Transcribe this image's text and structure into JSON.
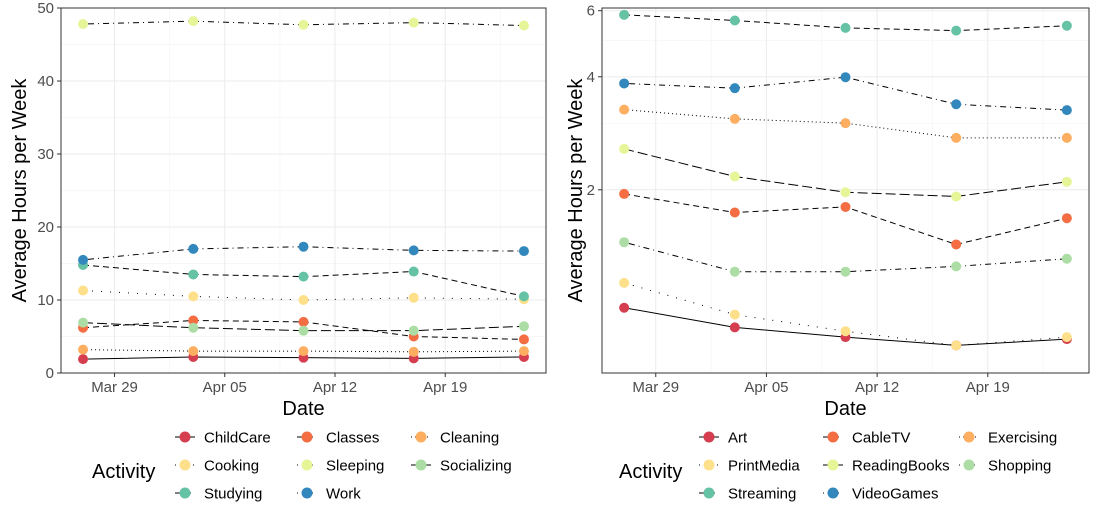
{
  "chart_data": [
    {
      "type": "line",
      "xlabel": "Date",
      "ylabel": "Average Hours per Week",
      "x": [
        "2020-03-27",
        "2020-04-03",
        "2020-04-10",
        "2020-04-17",
        "2020-04-24"
      ],
      "xticks": [
        {
          "date": "2020-03-29",
          "label": "Mar 29"
        },
        {
          "date": "2020-04-05",
          "label": "Apr 05"
        },
        {
          "date": "2020-04-12",
          "label": "Apr 12"
        },
        {
          "date": "2020-04-19",
          "label": "Apr 19"
        }
      ],
      "yticks": [
        0,
        10,
        20,
        30,
        40,
        50
      ],
      "ylim": [
        0,
        50
      ],
      "scale": "linear",
      "grid": true,
      "legend_title": "Activity",
      "legend_position": "bottom",
      "series": [
        {
          "name": "ChildCare",
          "color": "#D53E4F",
          "dash": "solid",
          "values": [
            1.9,
            2.2,
            2.1,
            2.0,
            2.2
          ]
        },
        {
          "name": "Classes",
          "color": "#F46D43",
          "dash": "dashed",
          "values": [
            6.2,
            7.2,
            7.0,
            5.0,
            4.6
          ]
        },
        {
          "name": "Cleaning",
          "color": "#FDAE61",
          "dash": "dotted",
          "values": [
            3.2,
            3.0,
            3.0,
            2.9,
            3.0
          ]
        },
        {
          "name": "Cooking",
          "color": "#FEE08B",
          "dash": "dotted-wide",
          "values": [
            11.3,
            10.5,
            10.0,
            10.3,
            10.1
          ]
        },
        {
          "name": "Sleeping",
          "color": "#E6F598",
          "dash": "dotdash",
          "values": [
            47.8,
            48.2,
            47.7,
            48.0,
            47.6
          ]
        },
        {
          "name": "Socializing",
          "color": "#ABDDA4",
          "dash": "longdash",
          "values": [
            6.9,
            6.2,
            5.8,
            5.8,
            6.4
          ]
        },
        {
          "name": "Studying",
          "color": "#66C2A5",
          "dash": "dashed",
          "values": [
            14.8,
            13.5,
            13.2,
            13.9,
            10.5
          ]
        },
        {
          "name": "Work",
          "color": "#3288BD",
          "dash": "dotdash",
          "values": [
            15.5,
            17.0,
            17.3,
            16.8,
            16.7
          ]
        }
      ]
    },
    {
      "type": "line",
      "xlabel": "Date",
      "ylabel": "Average Hours per Week",
      "x": [
        "2020-03-27",
        "2020-04-03",
        "2020-04-10",
        "2020-04-17",
        "2020-04-24"
      ],
      "xticks": [
        {
          "date": "2020-03-29",
          "label": "Mar 29"
        },
        {
          "date": "2020-04-05",
          "label": "Apr 05"
        },
        {
          "date": "2020-04-12",
          "label": "Apr 12"
        },
        {
          "date": "2020-04-19",
          "label": "Apr 19"
        }
      ],
      "yticks": [
        2,
        4,
        6
      ],
      "ylim": [
        0.65,
        6.1
      ],
      "scale": "log",
      "grid": true,
      "legend_title": "Activity",
      "legend_position": "bottom",
      "series": [
        {
          "name": "Art",
          "color": "#D53E4F",
          "dash": "solid",
          "values": [
            0.97,
            0.86,
            0.81,
            0.77,
            0.8
          ]
        },
        {
          "name": "CableTV",
          "color": "#F46D43",
          "dash": "dashed",
          "values": [
            1.95,
            1.74,
            1.8,
            1.43,
            1.68
          ]
        },
        {
          "name": "Exercising",
          "color": "#FDAE61",
          "dash": "dotted",
          "values": [
            3.27,
            3.09,
            3.01,
            2.75,
            2.75
          ]
        },
        {
          "name": "PrintMedia",
          "color": "#FEE08B",
          "dash": "dotted-wide",
          "values": [
            1.13,
            0.93,
            0.84,
            0.77,
            0.81
          ]
        },
        {
          "name": "ReadingBooks",
          "color": "#E6F598",
          "dash": "longdash",
          "values": [
            2.57,
            2.17,
            1.97,
            1.92,
            2.1
          ]
        },
        {
          "name": "Shopping",
          "color": "#ABDDA4",
          "dash": "dotdash",
          "values": [
            1.45,
            1.21,
            1.21,
            1.25,
            1.31
          ]
        },
        {
          "name": "Streaming",
          "color": "#66C2A5",
          "dash": "dashed",
          "values": [
            5.85,
            5.65,
            5.4,
            5.31,
            5.47
          ]
        },
        {
          "name": "VideoGames",
          "color": "#3288BD",
          "dash": "dotdash",
          "values": [
            3.84,
            3.73,
            3.99,
            3.38,
            3.26
          ]
        }
      ]
    }
  ]
}
